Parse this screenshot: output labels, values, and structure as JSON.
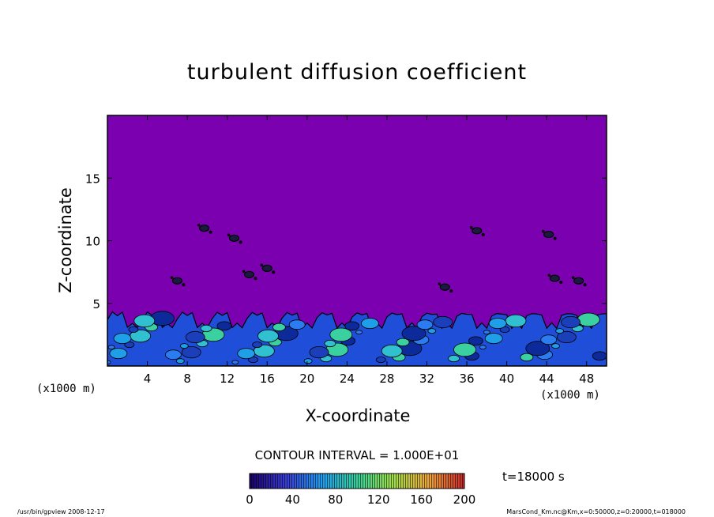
{
  "chart_data": {
    "type": "heatmap",
    "title": "turbulent diffusion coefficient",
    "xlabel": "X-coordinate",
    "ylabel": "Z-coordinate",
    "x_unit": "(x1000 m)",
    "xlim": [
      0,
      50
    ],
    "ylim": [
      0,
      20
    ],
    "x_ticks": [
      4,
      8,
      12,
      16,
      20,
      24,
      28,
      32,
      36,
      40,
      44,
      48
    ],
    "y_ticks": [
      5,
      10,
      15
    ],
    "contour_interval": "CONTOUR INTERVAL = 1.000E+01",
    "time": "t=18000 s",
    "colorbar": {
      "min": 0,
      "max": 200,
      "ticks": [
        0,
        40,
        80,
        120,
        160,
        200
      ],
      "colors": [
        "#1a0066",
        "#3a3dd6",
        "#1ea0f0",
        "#37d09a",
        "#9ce04c",
        "#f0a83a",
        "#c8282a"
      ]
    },
    "background_color": "#7a00b0",
    "boundary_layer_top_km": 4.5,
    "features": [
      {
        "x": 7.0,
        "z": 6.8
      },
      {
        "x": 9.7,
        "z": 11.0
      },
      {
        "x": 12.7,
        "z": 10.2
      },
      {
        "x": 14.2,
        "z": 7.3
      },
      {
        "x": 16.0,
        "z": 7.8
      },
      {
        "x": 33.8,
        "z": 6.3
      },
      {
        "x": 37.0,
        "z": 10.8
      },
      {
        "x": 44.2,
        "z": 10.5
      },
      {
        "x": 44.8,
        "z": 7.0
      },
      {
        "x": 47.2,
        "z": 6.8
      }
    ]
  },
  "footer": {
    "left": "/usr/bin/gpview   2008-12-17",
    "right": "MarsCond_Km.nc@Km,x=0:50000,z=0:20000,t=018000"
  }
}
